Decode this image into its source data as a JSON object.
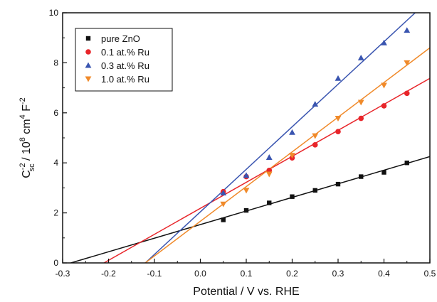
{
  "chart_data": {
    "type": "scatter",
    "title": "",
    "xlabel": "Potential / V vs. RHE",
    "ylabel": {
      "base": "C",
      "sup": "-2",
      "sub": "sc",
      "rest": " / 10",
      "exp1": "8",
      "unit": " cm",
      "exp2": "4",
      "unit2": " F",
      "exp3": "-2"
    },
    "xlim": [
      -0.3,
      0.5
    ],
    "ylim": [
      0,
      10
    ],
    "xticks": [
      -0.3,
      -0.2,
      -0.1,
      0.0,
      0.1,
      0.2,
      0.3,
      0.4,
      0.5
    ],
    "xtick_labels": [
      "-0.3",
      "-0.2",
      "-0.1",
      "0.0",
      "0.1",
      "0.2",
      "0.3",
      "0.4",
      "0.5"
    ],
    "yticks": [
      0,
      2,
      4,
      6,
      8,
      10
    ],
    "ytick_labels": [
      "0",
      "2",
      "4",
      "6",
      "8",
      "10"
    ],
    "grid": false,
    "legend": "top-left",
    "x": [
      0.05,
      0.1,
      0.15,
      0.2,
      0.25,
      0.3,
      0.35,
      0.4,
      0.45
    ],
    "series": [
      {
        "name": "pure ZnO",
        "marker": "square",
        "color": "#111111",
        "values": [
          1.72,
          2.1,
          2.4,
          2.65,
          2.9,
          3.15,
          3.45,
          3.62,
          4.0
        ],
        "fit": [
          [
            -0.282,
            0
          ],
          [
            0.5,
            4.25
          ]
        ]
      },
      {
        "name": "0.1 at.% Ru",
        "marker": "circle",
        "color": "#e8252a",
        "values": [
          2.85,
          3.45,
          3.7,
          4.2,
          4.72,
          5.25,
          5.78,
          6.28,
          6.78
        ],
        "fit": [
          [
            -0.21,
            0
          ],
          [
            0.5,
            7.38
          ]
        ]
      },
      {
        "name": "0.3 at.% Ru",
        "marker": "triangle-up",
        "color": "#3a55b0",
        "values": [
          2.8,
          3.5,
          4.22,
          5.22,
          6.35,
          7.38,
          8.2,
          8.8,
          9.3
        ],
        "fit": [
          [
            -0.12,
            0
          ],
          [
            0.468,
            10
          ]
        ]
      },
      {
        "name": "1.0 at.% Ru",
        "marker": "triangle-down",
        "color": "#f08a2a",
        "values": [
          2.35,
          2.9,
          3.55,
          4.3,
          5.08,
          5.78,
          6.42,
          7.1,
          8.0
        ],
        "fit": [
          [
            -0.12,
            0
          ],
          [
            0.5,
            8.6
          ]
        ]
      }
    ]
  }
}
